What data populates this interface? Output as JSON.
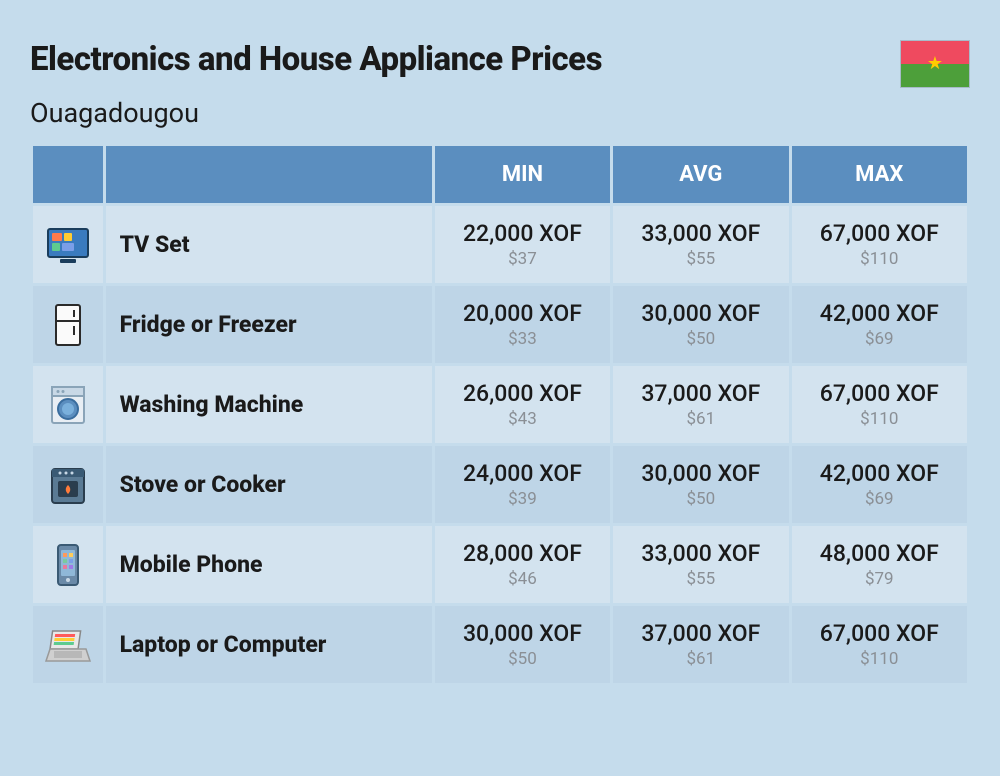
{
  "header": {
    "title": "Electronics and House Appliance Prices",
    "subtitle": "Ouagadougou"
  },
  "flag": {
    "top_color": "#ef4a5f",
    "bottom_color": "#4d9f3a",
    "star_color": "#ffcc00"
  },
  "table": {
    "columns": [
      "MIN",
      "AVG",
      "MAX"
    ],
    "header_bg": "#5b8ebf",
    "header_text_color": "#ffffff",
    "row_odd_bg": "#d3e3ef",
    "row_even_bg": "#bed5e7",
    "price_main_color": "#1a1a1a",
    "price_sub_color": "#8a8f95",
    "rows": [
      {
        "icon": "tv-icon",
        "label": "TV Set",
        "min": {
          "xof": "22,000 XOF",
          "usd": "$37"
        },
        "avg": {
          "xof": "33,000 XOF",
          "usd": "$55"
        },
        "max": {
          "xof": "67,000 XOF",
          "usd": "$110"
        }
      },
      {
        "icon": "fridge-icon",
        "label": "Fridge or Freezer",
        "min": {
          "xof": "20,000 XOF",
          "usd": "$33"
        },
        "avg": {
          "xof": "30,000 XOF",
          "usd": "$50"
        },
        "max": {
          "xof": "42,000 XOF",
          "usd": "$69"
        }
      },
      {
        "icon": "washer-icon",
        "label": "Washing Machine",
        "min": {
          "xof": "26,000 XOF",
          "usd": "$43"
        },
        "avg": {
          "xof": "37,000 XOF",
          "usd": "$61"
        },
        "max": {
          "xof": "67,000 XOF",
          "usd": "$110"
        }
      },
      {
        "icon": "stove-icon",
        "label": "Stove or Cooker",
        "min": {
          "xof": "24,000 XOF",
          "usd": "$39"
        },
        "avg": {
          "xof": "30,000 XOF",
          "usd": "$50"
        },
        "max": {
          "xof": "42,000 XOF",
          "usd": "$69"
        }
      },
      {
        "icon": "phone-icon",
        "label": "Mobile Phone",
        "min": {
          "xof": "28,000 XOF",
          "usd": "$46"
        },
        "avg": {
          "xof": "33,000 XOF",
          "usd": "$55"
        },
        "max": {
          "xof": "48,000 XOF",
          "usd": "$79"
        }
      },
      {
        "icon": "laptop-icon",
        "label": "Laptop or Computer",
        "min": {
          "xof": "30,000 XOF",
          "usd": "$50"
        },
        "avg": {
          "xof": "37,000 XOF",
          "usd": "$61"
        },
        "max": {
          "xof": "67,000 XOF",
          "usd": "$110"
        }
      }
    ]
  },
  "styling": {
    "page_bg": "#c5dcec",
    "title_fontsize": 33,
    "subtitle_fontsize": 27,
    "label_fontsize": 23,
    "price_main_fontsize": 23,
    "price_sub_fontsize": 17,
    "header_fontsize": 22
  }
}
